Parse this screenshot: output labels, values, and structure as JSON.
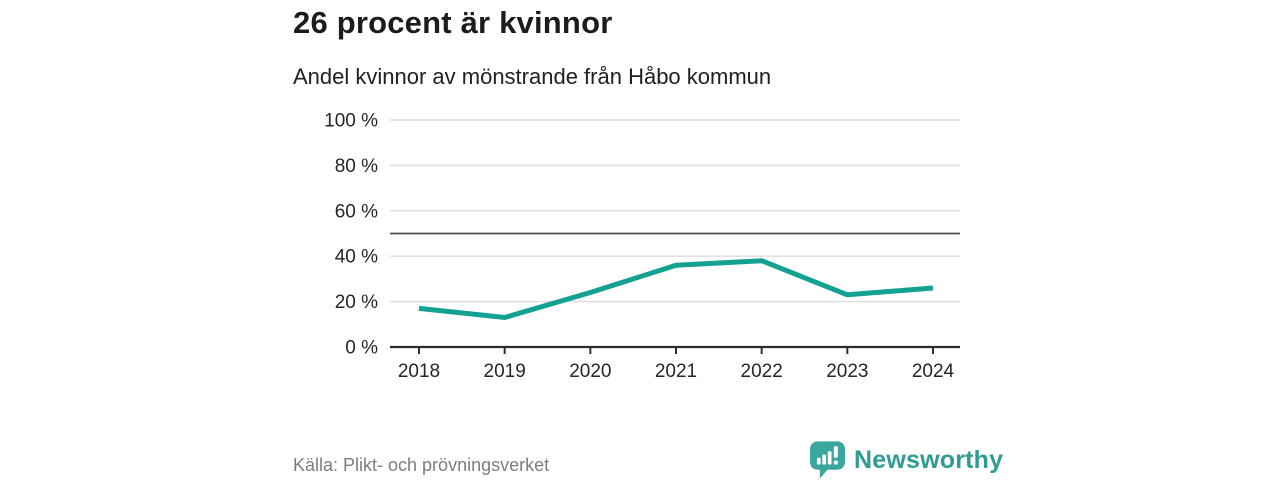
{
  "header": {
    "title": "26 procent är kvinnor",
    "subtitle": "Andel kvinnor av mönstrande från Håbo kommun"
  },
  "chart_data": {
    "type": "line",
    "x": [
      2018,
      2019,
      2020,
      2021,
      2022,
      2023,
      2024
    ],
    "series": [
      {
        "name": "Andel kvinnor av mönstrande",
        "values": [
          17,
          13,
          24,
          36,
          38,
          23,
          26
        ]
      }
    ],
    "title": "26 procent är kvinnor",
    "subtitle": "Andel kvinnor av mönstrande från Håbo kommun",
    "xlabel": "",
    "ylabel": "",
    "ylim": [
      0,
      100
    ],
    "yticks": [
      0,
      20,
      40,
      60,
      80,
      100
    ],
    "ytick_suffix": " %",
    "reference_line": 50,
    "grid": true,
    "legend": "none",
    "colors": {
      "line": "#13a192",
      "grid": "#dcdcdc",
      "reference": "#4d4d4d",
      "axis": "#2e2e2e",
      "tick_label": "#262626"
    }
  },
  "footer": {
    "source": "Källa: Plikt- och prövningsverket",
    "brand": "Newsworthy",
    "brand_color": "#2f9c94",
    "logo_color": "#3aa79e"
  }
}
